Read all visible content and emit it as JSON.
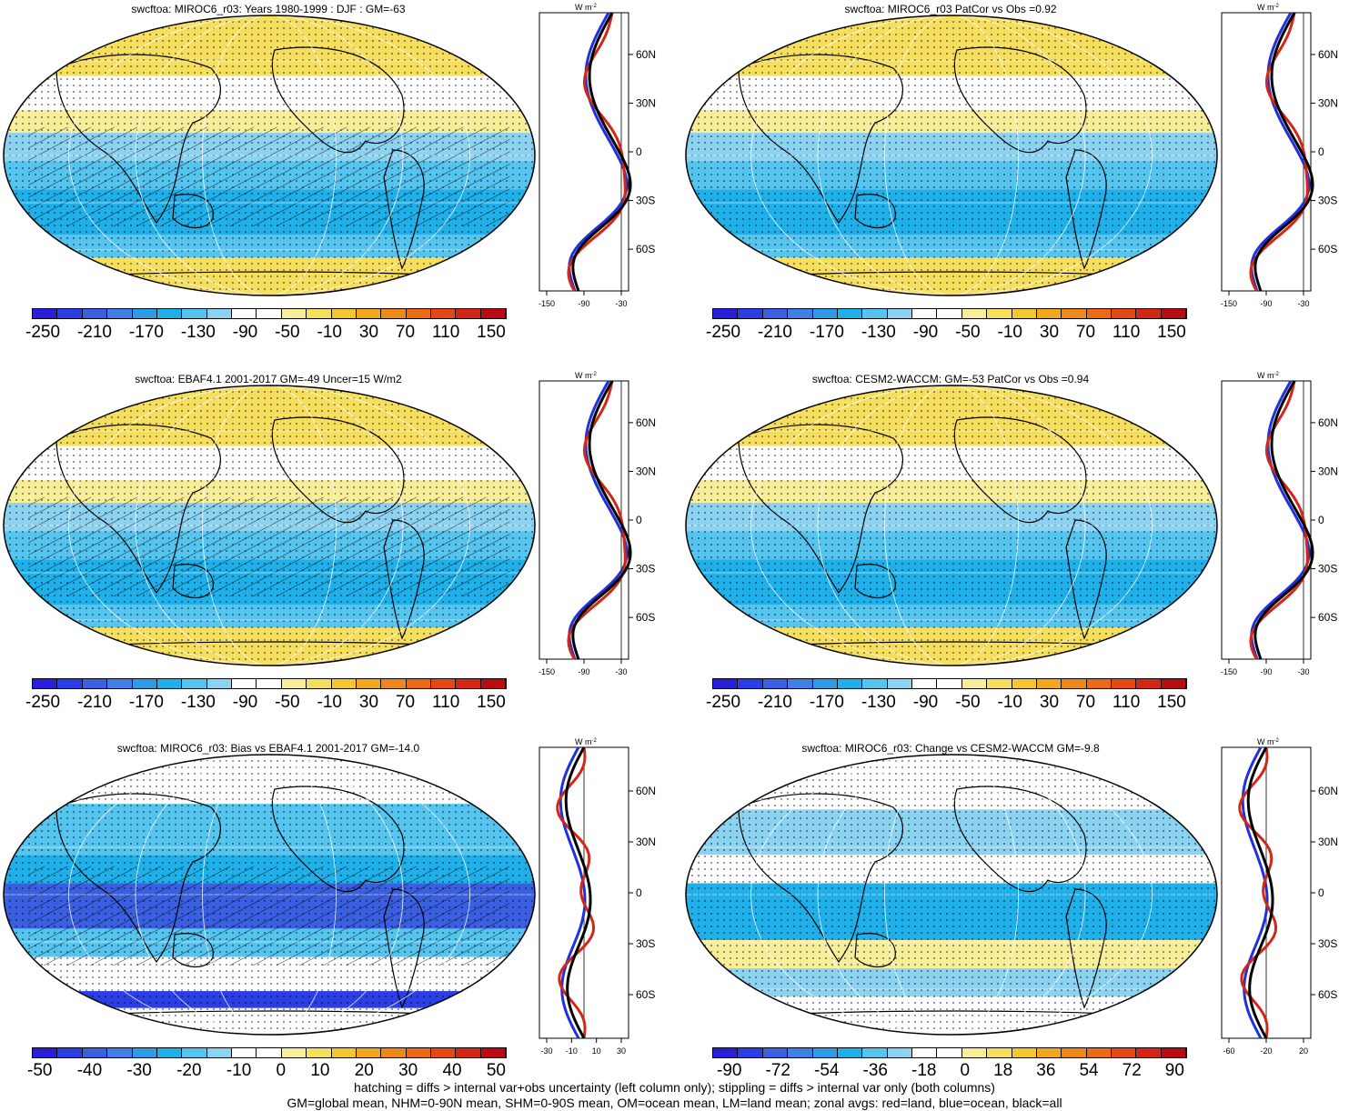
{
  "palette": {
    "full": [
      "#2a1fd8",
      "#2b3ee6",
      "#3a5fe0",
      "#3f7fe6",
      "#2f9be6",
      "#1fb0ea",
      "#55c4ef",
      "#8cd3f2",
      "#ffffff",
      "#ffffff",
      "#f8ee9a",
      "#f6df5e",
      "#f4c72e",
      "#f2a81e",
      "#ee8818",
      "#ea6a16",
      "#e44814",
      "#d42614",
      "#b80c10"
    ],
    "diff_left": [
      "#2a1fd8",
      "#2b3ee6",
      "#3a5fe0",
      "#3f7fe6",
      "#2f9be6",
      "#1fb0ea",
      "#55c4ef",
      "#8cd3f2",
      "#ffffff",
      "#ffffff",
      "#f8ee9a",
      "#f6df5e",
      "#f4c72e",
      "#f2a81e",
      "#ee8818",
      "#ea6a16",
      "#e44814",
      "#d42614",
      "#b80c10"
    ],
    "land": "#d42614",
    "ocean": "#2030e0",
    "all": "#000000"
  },
  "panels": [
    {
      "title": "swcftoa: MIROC6_r03: Years 1980-1999 : DJF : GM=-63",
      "colorbar_labels": [
        "-250",
        "-210",
        "-170",
        "-130",
        "-90",
        "-50",
        "-10",
        "30",
        "70",
        "110",
        "150"
      ],
      "zonal_unit": "W m",
      "zonal_unit_sup": "-2",
      "zonal_ylabels": [
        "60N",
        "30N",
        "0",
        "30S",
        "60S"
      ],
      "zonal_xlabels": [
        "-150",
        "-90",
        "-30"
      ]
    },
    {
      "title": "swcftoa: MIROC6_r03 PatCor vs Obs =0.92",
      "colorbar_labels": [
        "-250",
        "-210",
        "-170",
        "-130",
        "-90",
        "-50",
        "-10",
        "30",
        "70",
        "110",
        "150"
      ],
      "zonal_unit": "W m",
      "zonal_unit_sup": "-2",
      "zonal_ylabels": [
        "60N",
        "30N",
        "0",
        "30S",
        "60S"
      ],
      "zonal_xlabels": [
        "-150",
        "-90",
        "-30"
      ]
    },
    {
      "title": "swcftoa: EBAF4.1 2001-2017 GM=-49 Uncer=15 W/m2",
      "colorbar_labels": [
        "-250",
        "-210",
        "-170",
        "-130",
        "-90",
        "-50",
        "-10",
        "30",
        "70",
        "110",
        "150"
      ],
      "zonal_unit": "W m",
      "zonal_unit_sup": "-2",
      "zonal_ylabels": [
        "60N",
        "30N",
        "0",
        "30S",
        "60S"
      ],
      "zonal_xlabels": [
        "-150",
        "-90",
        "-30"
      ]
    },
    {
      "title": "swcftoa: CESM2-WACCM: GM=-53 PatCor vs Obs =0.94",
      "colorbar_labels": [
        "-250",
        "-210",
        "-170",
        "-130",
        "-90",
        "-50",
        "-10",
        "30",
        "70",
        "110",
        "150"
      ],
      "zonal_unit": "W m",
      "zonal_unit_sup": "-2",
      "zonal_ylabels": [
        "60N",
        "30N",
        "0",
        "30S",
        "60S"
      ],
      "zonal_xlabels": [
        "-150",
        "-90",
        "-30"
      ]
    },
    {
      "title": "swcftoa: MIROC6_r03: Bias vs EBAF4.1 2001-2017 GM=-14.0",
      "colorbar_labels": [
        "-50",
        "-40",
        "-30",
        "-20",
        "-10",
        "0",
        "10",
        "20",
        "30",
        "40",
        "50"
      ],
      "zonal_unit": "W m",
      "zonal_unit_sup": "-2",
      "zonal_ylabels": [
        "60N",
        "30N",
        "0",
        "30S",
        "60S"
      ],
      "zonal_xlabels": [
        "-30",
        "-10",
        "10",
        "30"
      ]
    },
    {
      "title": "swcftoa: MIROC6_r03: Change vs CESM2-WACCM GM=-9.8",
      "colorbar_labels": [
        "-90",
        "-72",
        "-54",
        "-36",
        "-18",
        "0",
        "18",
        "36",
        "54",
        "72",
        "90"
      ],
      "zonal_unit": "W m",
      "zonal_unit_sup": "-2",
      "zonal_ylabels": [
        "60N",
        "30N",
        "0",
        "30S",
        "60S"
      ],
      "zonal_xlabels": [
        "-60",
        "-20",
        "20"
      ]
    }
  ],
  "footer": {
    "line1": "hatching = diffs > internal var+obs uncertainty (left column only); stippling = diffs > internal var only (both columns)",
    "line2": "GM=global mean, NHM=0-90N mean, SHM=0-90S mean, OM=ocean mean, LM=land mean; zonal avgs: red=land, blue=ocean, black=all"
  }
}
